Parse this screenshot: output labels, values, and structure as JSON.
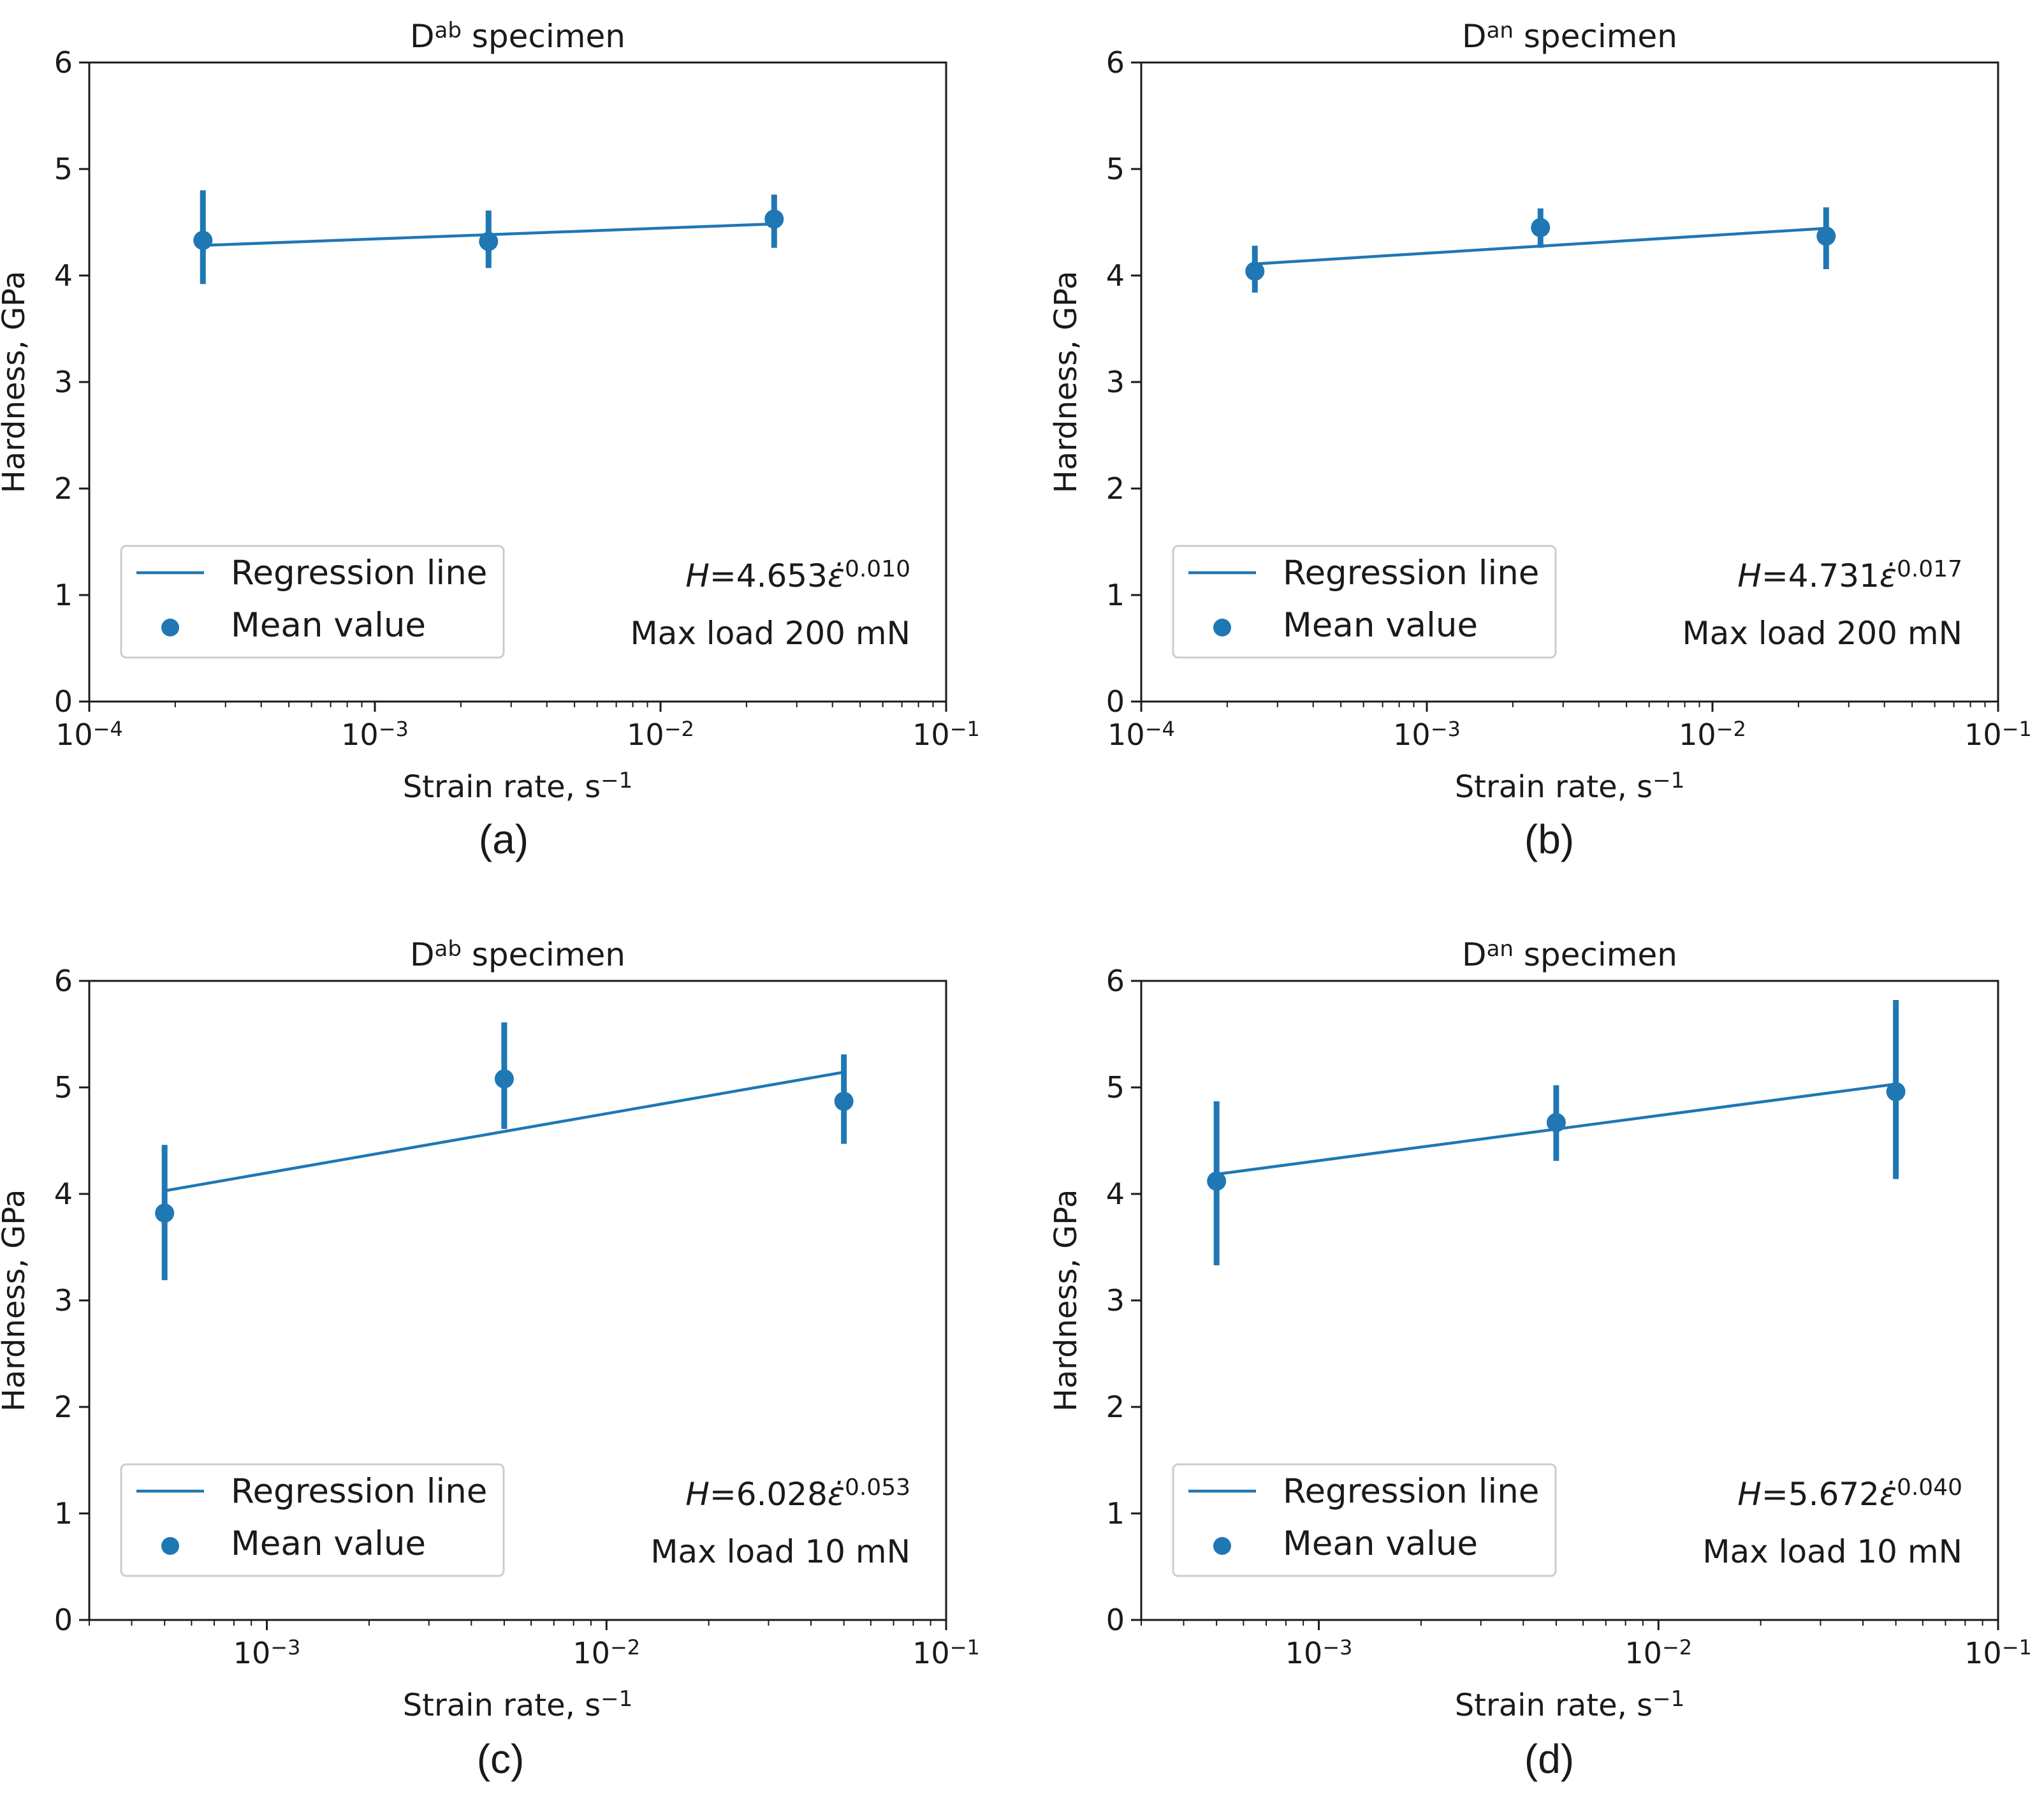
{
  "chart_data": [
    {
      "type": "scatter",
      "panel_label": "(a)",
      "title": {
        "base": "D",
        "sup": "ab",
        "rest": " specimen"
      },
      "xlabel": {
        "base": "Strain rate, s",
        "sup": "−1"
      },
      "ylabel": "Hardness, GPa",
      "xscale": "log",
      "xlim": [
        0.0001,
        0.1
      ],
      "ylim": [
        0,
        6
      ],
      "xticks": [
        {
          "value": 0.0001,
          "base": "10",
          "exp": "−4"
        },
        {
          "value": 0.001,
          "base": "10",
          "exp": "−3"
        },
        {
          "value": 0.01,
          "base": "10",
          "exp": "−2"
        },
        {
          "value": 0.1,
          "base": "10",
          "exp": "−1"
        }
      ],
      "yticks": [
        0,
        1,
        2,
        3,
        4,
        5,
        6
      ],
      "legend": {
        "position": "lower-left",
        "line": "Regression line",
        "marker": "Mean value"
      },
      "equation": {
        "pre": "H",
        "mid": "=4.653",
        "eps": "ε̇",
        "exp": "0.010"
      },
      "load": "Max load 200 mN",
      "regression": {
        "coef": 4.653,
        "exponent": 0.01,
        "x_start": 0.00025,
        "x_end": 0.025
      },
      "points": [
        {
          "x": 0.00025,
          "y": 4.33,
          "lo": 3.92,
          "hi": 4.8
        },
        {
          "x": 0.0025,
          "y": 4.32,
          "lo": 4.07,
          "hi": 4.61
        },
        {
          "x": 0.025,
          "y": 4.53,
          "lo": 4.26,
          "hi": 4.76
        }
      ]
    },
    {
      "type": "scatter",
      "panel_label": "(b)",
      "title": {
        "base": "D",
        "sup": "an",
        "rest": " specimen"
      },
      "xlabel": {
        "base": "Strain rate, s",
        "sup": "−1"
      },
      "ylabel": "Hardness, GPa",
      "xscale": "log",
      "xlim": [
        0.0001,
        0.1
      ],
      "ylim": [
        0,
        6
      ],
      "xticks": [
        {
          "value": 0.0001,
          "base": "10",
          "exp": "−4"
        },
        {
          "value": 0.001,
          "base": "10",
          "exp": "−3"
        },
        {
          "value": 0.01,
          "base": "10",
          "exp": "−2"
        },
        {
          "value": 0.1,
          "base": "10",
          "exp": "−1"
        }
      ],
      "yticks": [
        0,
        1,
        2,
        3,
        4,
        5,
        6
      ],
      "legend": {
        "position": "lower-left",
        "line": "Regression line",
        "marker": "Mean value"
      },
      "equation": {
        "pre": "H",
        "mid": "=4.731",
        "eps": "ε̇",
        "exp": "0.017"
      },
      "load": "Max load 200 mN",
      "regression": {
        "coef": 4.731,
        "exponent": 0.017,
        "x_start": 0.00025,
        "x_end": 0.025
      },
      "points": [
        {
          "x": 0.00025,
          "y": 4.04,
          "lo": 3.84,
          "hi": 4.28
        },
        {
          "x": 0.0025,
          "y": 4.45,
          "lo": 4.26,
          "hi": 4.63
        },
        {
          "x": 0.025,
          "y": 4.37,
          "lo": 4.06,
          "hi": 4.64
        }
      ]
    },
    {
      "type": "scatter",
      "panel_label": "(c)",
      "title": {
        "base": "D",
        "sup": "ab",
        "rest": " specimen"
      },
      "xlabel": {
        "base": "Strain rate, s",
        "sup": "−1"
      },
      "ylabel": "Hardness, GPa",
      "xscale": "log",
      "xlim": [
        0.0003,
        0.1
      ],
      "ylim": [
        0,
        6
      ],
      "xticks": [
        {
          "value": 0.001,
          "base": "10",
          "exp": "−3"
        },
        {
          "value": 0.01,
          "base": "10",
          "exp": "−2"
        },
        {
          "value": 0.1,
          "base": "10",
          "exp": "−1"
        }
      ],
      "yticks": [
        0,
        1,
        2,
        3,
        4,
        5,
        6
      ],
      "legend": {
        "position": "lower-left",
        "line": "Regression line",
        "marker": "Mean value"
      },
      "equation": {
        "pre": "H",
        "mid": "=6.028",
        "eps": "ε̇",
        "exp": "0.053"
      },
      "load": "Max load 10 mN",
      "regression": {
        "coef": 6.028,
        "exponent": 0.053,
        "x_start": 0.0005,
        "x_end": 0.05
      },
      "points": [
        {
          "x": 0.0005,
          "y": 3.82,
          "lo": 3.19,
          "hi": 4.46
        },
        {
          "x": 0.005,
          "y": 5.08,
          "lo": 4.61,
          "hi": 5.61
        },
        {
          "x": 0.05,
          "y": 4.87,
          "lo": 4.47,
          "hi": 5.31
        }
      ]
    },
    {
      "type": "scatter",
      "panel_label": "(d)",
      "title": {
        "base": "D",
        "sup": "an",
        "rest": " specimen"
      },
      "xlabel": {
        "base": "Strain rate, s",
        "sup": "−1"
      },
      "ylabel": "Hardness, GPa",
      "xscale": "log",
      "xlim": [
        0.0003,
        0.1
      ],
      "ylim": [
        0,
        6
      ],
      "xticks": [
        {
          "value": 0.001,
          "base": "10",
          "exp": "−3"
        },
        {
          "value": 0.01,
          "base": "10",
          "exp": "−2"
        },
        {
          "value": 0.1,
          "base": "10",
          "exp": "−1"
        }
      ],
      "yticks": [
        0,
        1,
        2,
        3,
        4,
        5,
        6
      ],
      "legend": {
        "position": "lower-left",
        "line": "Regression line",
        "marker": "Mean value"
      },
      "equation": {
        "pre": "H",
        "mid": "=5.672",
        "eps": "ε̇",
        "exp": "0.040"
      },
      "load": "Max load 10 mN",
      "regression": {
        "coef": 5.672,
        "exponent": 0.04,
        "x_start": 0.0005,
        "x_end": 0.05
      },
      "points": [
        {
          "x": 0.0005,
          "y": 4.12,
          "lo": 3.33,
          "hi": 4.87
        },
        {
          "x": 0.005,
          "y": 4.67,
          "lo": 4.31,
          "hi": 5.02
        },
        {
          "x": 0.05,
          "y": 4.96,
          "lo": 4.14,
          "hi": 5.82
        }
      ]
    }
  ],
  "colors": {
    "series": "#1f77b4",
    "axes": "#1a1a1a",
    "legend_border": "#cccccc"
  }
}
